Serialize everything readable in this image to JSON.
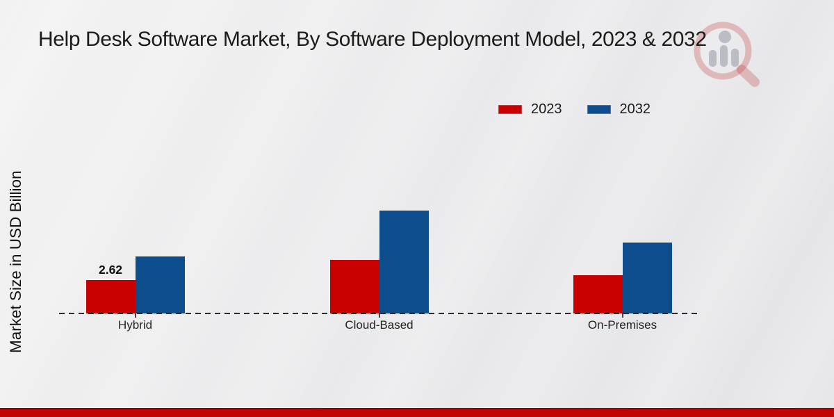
{
  "header": {
    "title": "Help Desk Software Market, By Software Deployment Model, 2023 & 2032"
  },
  "legend": [
    {
      "label": "2023",
      "color": "#C80000"
    },
    {
      "label": "2032",
      "color": "#0E4D8C"
    }
  ],
  "watermark": {
    "name": "market-research-magnifier-logo"
  },
  "chart_data": {
    "type": "bar",
    "title": "Help Desk Software Market, By Software Deployment Model, 2023 & 2032",
    "ylabel": "Market Size in USD Billion",
    "xlabel": "",
    "categories": [
      "Hybrid",
      "Cloud-Based",
      "On-Premises"
    ],
    "series": [
      {
        "name": "2023",
        "color": "#C80000",
        "values": [
          2.62,
          4.2,
          3.0
        ],
        "data_labels": [
          "2.62",
          "",
          ""
        ]
      },
      {
        "name": "2032",
        "color": "#0E4D8C",
        "values": [
          4.5,
          8.1,
          5.6
        ],
        "data_labels": [
          "",
          "",
          ""
        ]
      }
    ],
    "ylim": [
      0,
      10
    ],
    "grid": false,
    "legend_position": "top-right",
    "baseline_style": "dashed",
    "bar_value_shown_only_for": "Hybrid 2023"
  }
}
